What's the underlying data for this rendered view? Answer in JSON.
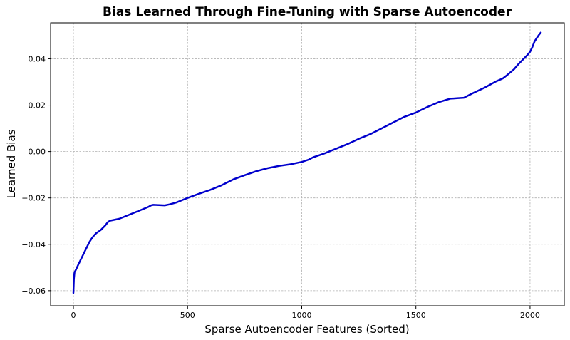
{
  "chart_data": {
    "type": "line",
    "title": "Bias Learned Through Fine-Tuning with Sparse Autoencoder",
    "xlabel": "Sparse Autoencoder Features (Sorted)",
    "ylabel": "Learned Bias",
    "xlim": [
      -100,
      2150
    ],
    "ylim": [
      -0.0665,
      0.0555
    ],
    "xticks": [
      0,
      500,
      1000,
      1500,
      2000
    ],
    "xtick_labels": [
      "0",
      "500",
      "1000",
      "1500",
      "2000"
    ],
    "yticks": [
      -0.06,
      -0.04,
      -0.02,
      0.0,
      0.02,
      0.04
    ],
    "ytick_labels": [
      "−0.06",
      "−0.04",
      "−0.02",
      "0.00",
      "0.02",
      "0.04"
    ],
    "grid": true,
    "series": [
      {
        "color": "#0000cc",
        "x": [
          0,
          2,
          5,
          10,
          20,
          30,
          40,
          50,
          60,
          70,
          80,
          90,
          100,
          120,
          140,
          150,
          160,
          200,
          250,
          300,
          330,
          340,
          350,
          400,
          420,
          450,
          500,
          550,
          600,
          650,
          700,
          750,
          800,
          850,
          900,
          950,
          1000,
          1030,
          1050,
          1100,
          1150,
          1200,
          1250,
          1300,
          1350,
          1400,
          1450,
          1500,
          1550,
          1600,
          1650,
          1680,
          1710,
          1750,
          1800,
          1850,
          1880,
          1900,
          1930,
          1950,
          1970,
          1990,
          2000,
          2010,
          2020,
          2030,
          2040,
          2047
        ],
        "y": [
          -0.061,
          -0.055,
          -0.052,
          -0.0512,
          -0.049,
          -0.047,
          -0.045,
          -0.043,
          -0.041,
          -0.039,
          -0.0375,
          -0.0362,
          -0.0352,
          -0.0338,
          -0.0318,
          -0.0305,
          -0.0298,
          -0.029,
          -0.027,
          -0.025,
          -0.0238,
          -0.0232,
          -0.023,
          -0.0232,
          -0.0228,
          -0.022,
          -0.02,
          -0.0182,
          -0.0165,
          -0.0145,
          -0.012,
          -0.0102,
          -0.0085,
          -0.0072,
          -0.0062,
          -0.0055,
          -0.0045,
          -0.0035,
          -0.0025,
          -0.0008,
          0.0012,
          0.0032,
          0.0055,
          0.0075,
          0.01,
          0.0125,
          0.015,
          0.0168,
          0.0192,
          0.0213,
          0.0228,
          0.023,
          0.0232,
          0.0252,
          0.0275,
          0.0302,
          0.0315,
          0.033,
          0.0355,
          0.0378,
          0.0398,
          0.0418,
          0.043,
          0.045,
          0.0475,
          0.049,
          0.0505,
          0.0513
        ]
      }
    ]
  }
}
